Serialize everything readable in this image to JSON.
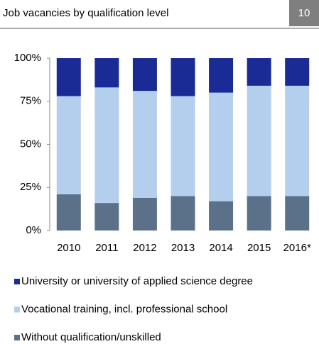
{
  "chart_data": {
    "type": "stacked_bar",
    "title": "Job vacancies by qualification level",
    "page_number": "10",
    "categories": [
      "2010",
      "2011",
      "2012",
      "2013",
      "2014",
      "2015",
      "2016*"
    ],
    "series": [
      {
        "name": "Without qualification/unskilled",
        "color": "#5b7189",
        "values": [
          21,
          16,
          19,
          20,
          17,
          20,
          20
        ]
      },
      {
        "name": "Vocational training, incl. professional school",
        "color": "#b4cfee",
        "values": [
          57,
          67,
          62,
          58,
          63,
          64,
          64
        ]
      },
      {
        "name": "University or university of applied science degree",
        "color": "#1a2b96",
        "values": [
          22,
          17,
          19,
          22,
          20,
          16,
          16
        ]
      }
    ],
    "ylim": [
      0,
      100
    ],
    "yticks": [
      {
        "value": 0,
        "label": "0%"
      },
      {
        "value": 25,
        "label": "25%"
      },
      {
        "value": 50,
        "label": "50%"
      },
      {
        "value": 75,
        "label": "75%"
      },
      {
        "value": 100,
        "label": "100%"
      }
    ],
    "grid": false
  }
}
